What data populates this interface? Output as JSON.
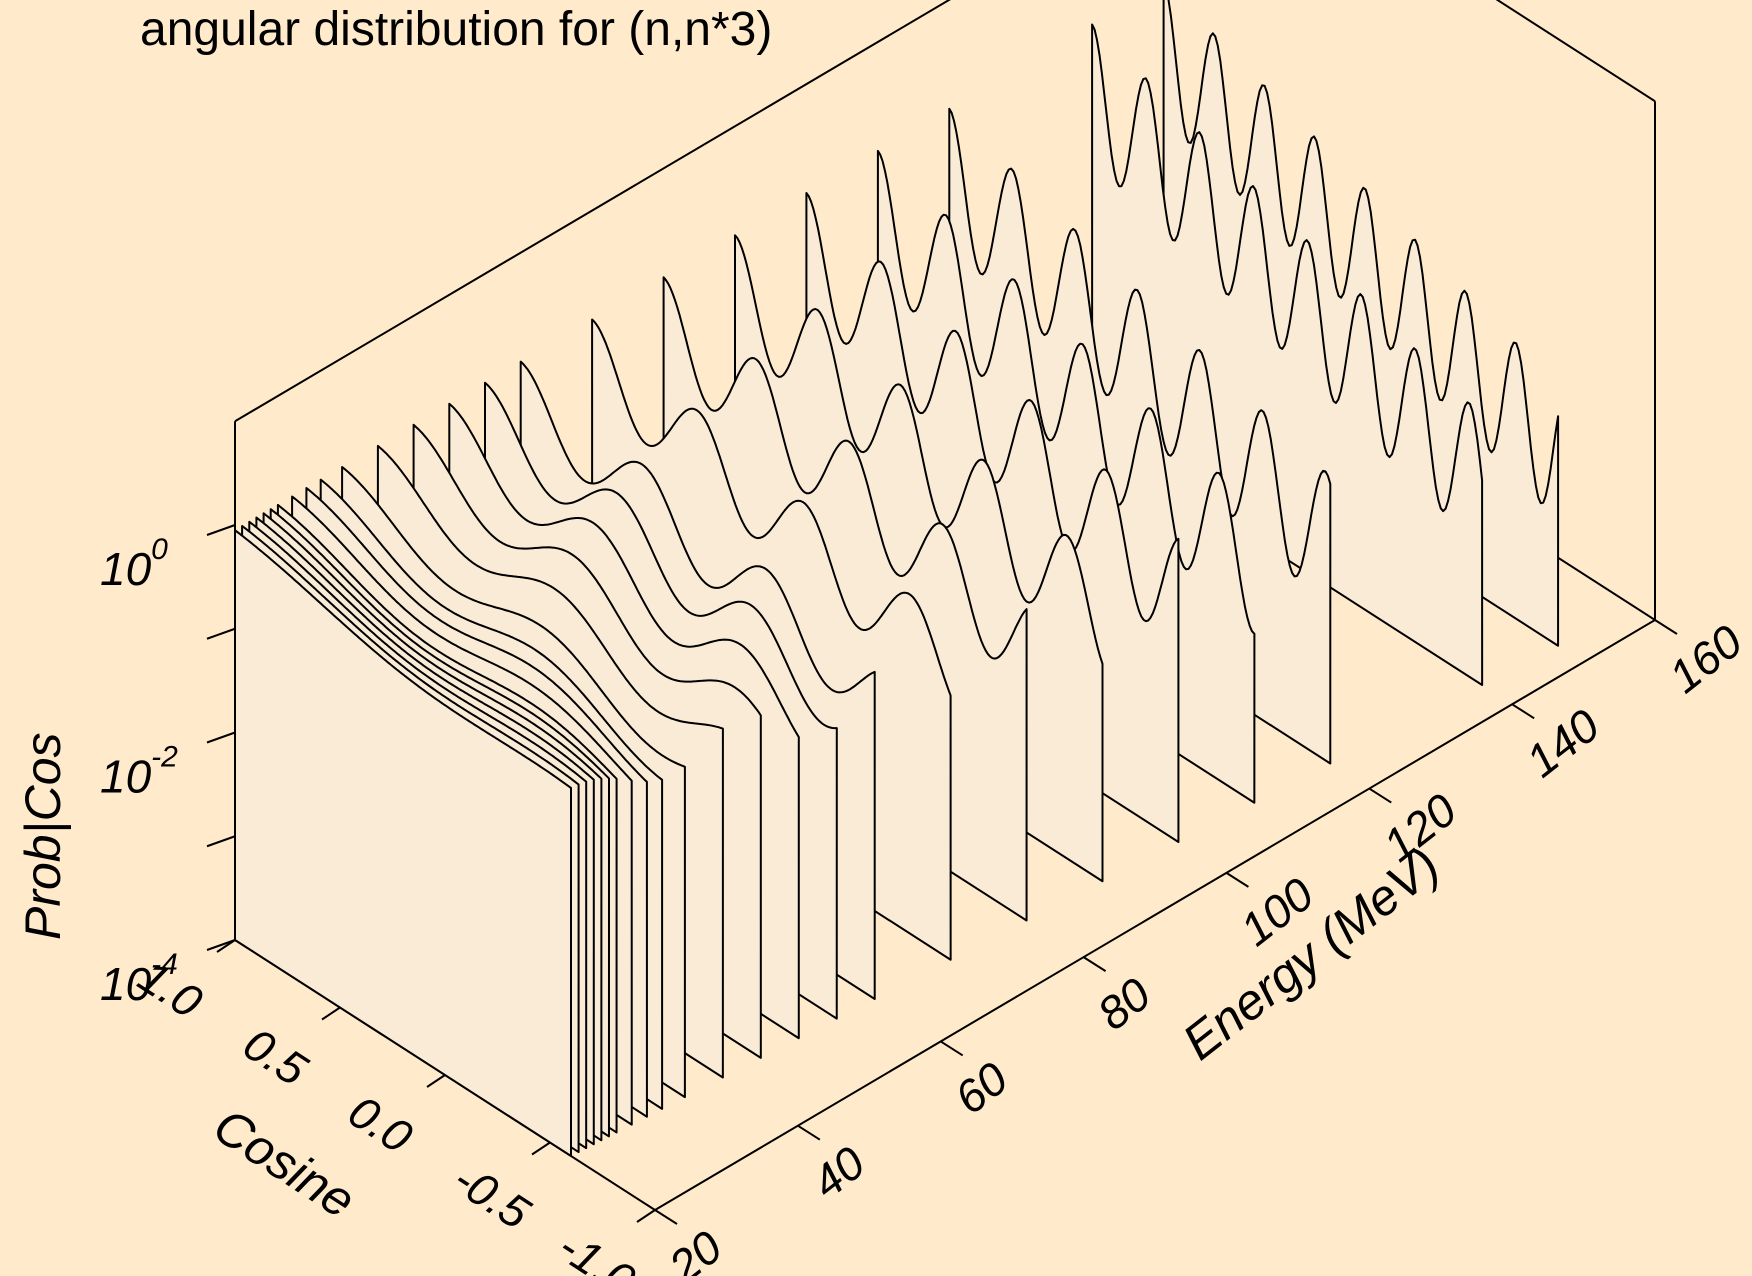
{
  "chart_data": {
    "type": "waterfall-3d",
    "title": "angular distribution for (n,n*3)",
    "xlabel": "Cosine",
    "ylabel": "Energy (MeV)",
    "zlabel": "Prob|Cos",
    "x_range": [
      1.0,
      -1.0
    ],
    "x_ticks": [
      "1.0",
      "0.5",
      "0.0",
      "-0.5",
      "-1.0"
    ],
    "y_range": [
      20,
      160
    ],
    "y_ticks": [
      "20",
      "40",
      "60",
      "80",
      "100",
      "120",
      "140",
      "160"
    ],
    "z_scale": "log",
    "z_range": [
      0.0001,
      10
    ],
    "z_ticks": [
      {
        "base": "10",
        "exp": "0"
      },
      {
        "base": "10",
        "exp": "-2"
      },
      {
        "base": "10",
        "exp": "-4"
      }
    ],
    "energies": [
      20,
      21,
      22,
      23,
      24,
      25,
      26,
      28,
      30,
      32,
      35,
      40,
      45,
      50,
      55,
      60,
      70,
      80,
      90,
      100,
      110,
      120,
      140,
      150
    ],
    "curve_shape": "oscillating angular distribution; peak ~1 at forward angles, oscillation count increases with energy; curves end at cosine ~ -0.6 to -0.9",
    "grid": false,
    "legend": "none",
    "colors": {
      "background": "#FFEBCC",
      "fill": "#FAEBD7",
      "line": "#000000"
    }
  }
}
